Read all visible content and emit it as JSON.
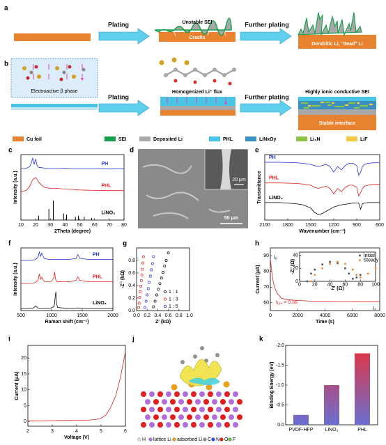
{
  "panels": {
    "a": {
      "label": "a",
      "step1": "Plating",
      "sei_text": "Unstable SEI",
      "cracks": "Cracks",
      "step2": "Further plating",
      "result": "Dendritic Li, \"dead\" Li"
    },
    "b": {
      "label": "b",
      "phase": "Electroactive β phase",
      "step1": "Plating",
      "flux": "Homogenized Li⁺ flux",
      "step2": "Further plating",
      "sei_text": "Highly ionic conductive SEI",
      "result": "Stable interface"
    },
    "legend": [
      {
        "name": "Cu foil",
        "color": "#e8822e"
      },
      {
        "name": "SEI",
        "color": "#1aa04a"
      },
      {
        "name": "Deposited Li",
        "color": "#a8a8a8"
      },
      {
        "name": "PHL",
        "color": "#49c6e5"
      },
      {
        "name": "LiNxOy",
        "color": "#3a8fc0"
      },
      {
        "name": "Li₃N",
        "color": "#8bc34a"
      },
      {
        "name": "LiF",
        "color": "#f5c842"
      }
    ],
    "d": {
      "label": "d",
      "scale_inset": "20 μm",
      "scale_main": "50 μm"
    },
    "j": {
      "label": "j",
      "legend": [
        "H",
        "lattice Li",
        "adsorbed Li",
        "C",
        "N",
        "O",
        "F"
      ]
    }
  },
  "chart_data": [
    {
      "type": "line",
      "panel": "c",
      "xlabel": "2Theta (degree)",
      "ylabel": "Intensity (a.u.)",
      "series_labels": "right",
      "xlim": [
        10,
        80
      ],
      "xticks": [
        10,
        20,
        30,
        40,
        50,
        60,
        70,
        80
      ],
      "ylim": [
        0,
        3
      ],
      "x": [
        10,
        12,
        14,
        16,
        17,
        18,
        19,
        20,
        21,
        22,
        24,
        26,
        30,
        35,
        40,
        45,
        50,
        60,
        70,
        80
      ],
      "series": [
        {
          "name": "PH",
          "color": "#1f2fd6",
          "values": [
            2.35,
            2.36,
            2.38,
            2.45,
            2.6,
            2.85,
            2.55,
            2.8,
            2.5,
            2.42,
            2.4,
            2.38,
            2.36,
            2.36,
            2.37,
            2.35,
            2.35,
            2.35,
            2.34,
            2.35
          ]
        },
        {
          "name": "PHL",
          "color": "#e02020",
          "values": [
            1.3,
            1.32,
            1.38,
            1.55,
            1.7,
            1.85,
            1.9,
            1.95,
            1.85,
            1.75,
            1.6,
            1.5,
            1.45,
            1.45,
            1.42,
            1.4,
            1.38,
            1.36,
            1.35,
            1.35
          ]
        },
        {
          "name": "LiNO₃",
          "color": "#000000",
          "style": "sticks",
          "x": [
            22,
            29,
            32,
            39,
            41,
            47,
            49,
            53,
            58
          ],
          "values": [
            0.2,
            0.5,
            0.9,
            0.3,
            0.25,
            0.15,
            0.2,
            0.15,
            0.1
          ]
        }
      ]
    },
    {
      "type": "line",
      "panel": "e",
      "xlabel": "Wavenumber (cm⁻¹)",
      "ylabel": "Transmittance",
      "series_labels": "left",
      "xlim": [
        2100,
        600
      ],
      "xticks": [
        2100,
        1800,
        1500,
        1200,
        900,
        600
      ],
      "ylim": [
        0,
        3
      ],
      "x": [
        2100,
        1900,
        1700,
        1600,
        1500,
        1450,
        1400,
        1350,
        1300,
        1250,
        1200,
        1150,
        1100,
        1050,
        1000,
        950,
        900,
        875,
        850,
        825,
        800,
        750,
        700,
        600
      ],
      "series": [
        {
          "name": "PH",
          "color": "#1f2fd6",
          "values": [
            2.65,
            2.65,
            2.63,
            2.6,
            2.55,
            2.5,
            2.45,
            2.5,
            2.55,
            2.45,
            2.2,
            2.45,
            2.3,
            2.5,
            2.6,
            2.6,
            2.5,
            2.05,
            2.2,
            2.45,
            2.55,
            2.6,
            2.62,
            2.63
          ]
        },
        {
          "name": "PHL",
          "color": "#e02020",
          "values": [
            1.7,
            1.7,
            1.68,
            1.65,
            1.6,
            1.5,
            1.45,
            1.5,
            1.55,
            1.45,
            1.2,
            1.45,
            1.3,
            1.5,
            1.6,
            1.6,
            1.5,
            1.1,
            1.25,
            1.45,
            1.55,
            1.6,
            1.62,
            1.65
          ]
        },
        {
          "name": "LiNO₃",
          "color": "#000000",
          "values": [
            0.8,
            0.8,
            0.75,
            0.7,
            0.55,
            0.35,
            0.25,
            0.3,
            0.4,
            0.5,
            0.6,
            0.65,
            0.7,
            0.72,
            0.75,
            0.78,
            0.78,
            0.78,
            0.5,
            0.75,
            0.78,
            0.8,
            0.8,
            0.8
          ]
        }
      ]
    },
    {
      "type": "line",
      "panel": "f",
      "xlabel": "Raman shift (cm⁻¹)",
      "ylabel": "Intensity (a.u.)",
      "series_labels": "right",
      "xlim": [
        500,
        2000
      ],
      "xticks": [
        500,
        1000,
        1500,
        2000
      ],
      "ylim": [
        0,
        3
      ],
      "x": [
        500,
        600,
        700,
        740,
        780,
        800,
        820,
        840,
        880,
        950,
        1000,
        1040,
        1050,
        1060,
        1070,
        1080,
        1100,
        1200,
        1300,
        1400,
        1430,
        1460,
        1600,
        1800,
        2000
      ],
      "series": [
        {
          "name": "PH",
          "color": "#1f2fd6",
          "values": [
            2.4,
            2.4,
            2.42,
            2.45,
            2.55,
            2.8,
            2.6,
            2.75,
            2.5,
            2.45,
            2.45,
            2.45,
            2.45,
            2.45,
            2.45,
            2.45,
            2.45,
            2.45,
            2.45,
            2.5,
            2.68,
            2.5,
            2.45,
            2.45,
            2.45
          ]
        },
        {
          "name": "PHL",
          "color": "#e02020",
          "values": [
            1.3,
            1.3,
            1.32,
            1.35,
            1.45,
            1.75,
            1.5,
            1.6,
            1.4,
            1.38,
            1.4,
            1.6,
            1.85,
            1.6,
            1.45,
            1.4,
            1.38,
            1.38,
            1.38,
            1.45,
            1.62,
            1.45,
            1.38,
            1.38,
            1.38
          ]
        },
        {
          "name": "LiNO₃",
          "color": "#000000",
          "values": [
            0.1,
            0.1,
            0.12,
            0.22,
            0.12,
            0.12,
            0.12,
            0.12,
            0.12,
            0.12,
            0.13,
            0.2,
            0.35,
            0.7,
            0.9,
            0.35,
            0.15,
            0.12,
            0.12,
            0.12,
            0.13,
            0.12,
            0.12,
            0.12,
            0.12
          ]
        }
      ]
    },
    {
      "type": "scatter",
      "panel": "g",
      "xlabel": "Z' (kΩ)",
      "ylabel": "-Z'' (kΩ)",
      "legend": "lower right",
      "xlim": [
        0,
        1.0
      ],
      "xticks": [
        {
          "value": 0,
          "label": "0.0"
        },
        0.2,
        0.4,
        0.6,
        0.8,
        {
          "value": 1,
          "label": "1.0"
        }
      ],
      "ylim": [
        0,
        1.0
      ],
      "yticks": [
        {
          "value": 0,
          "label": "0.0"
        },
        0.2,
        0.4,
        0.6,
        0.8
      ],
      "series": [
        {
          "name": "1 : 1",
          "color": "#000000",
          "x": [
            0.32,
            0.35,
            0.38,
            0.41,
            0.44,
            0.47,
            0.5,
            0.53,
            0.56,
            0.6
          ],
          "values": [
            0.06,
            0.15,
            0.25,
            0.34,
            0.43,
            0.52,
            0.61,
            0.71,
            0.8,
            0.92
          ]
        },
        {
          "name": "1 : 3",
          "color": "#e02020",
          "x": [
            0.04,
            0.05,
            0.06,
            0.07,
            0.08,
            0.09,
            0.1,
            0.11,
            0.12,
            0.13
          ],
          "values": [
            0.05,
            0.12,
            0.21,
            0.3,
            0.39,
            0.48,
            0.57,
            0.66,
            0.76,
            0.86
          ]
        },
        {
          "name": "1 : 5",
          "color": "#1f2fd6",
          "x": [
            0.16,
            0.18,
            0.2,
            0.22,
            0.24,
            0.26,
            0.28,
            0.3,
            0.32
          ],
          "values": [
            0.05,
            0.15,
            0.25,
            0.35,
            0.45,
            0.55,
            0.65,
            0.75,
            0.86
          ]
        }
      ]
    },
    {
      "type": "line",
      "panel": "h",
      "xlabel": "Time (s)",
      "ylabel": "Current (μA)",
      "xlim": [
        0,
        8000
      ],
      "xticks": [
        0,
        2000,
        4000,
        6000,
        8000
      ],
      "ylim": [
        55,
        95
      ],
      "yticks": [
        60,
        70,
        80,
        90
      ],
      "annotations": {
        "i0": "I₀",
        "is": "Iₛ",
        "t": "t",
        "t_sub": "Li+",
        "t_text": " = 0.56"
      },
      "x": [
        0,
        50,
        100,
        200,
        300,
        500,
        800,
        1200,
        2000,
        3000,
        4000,
        5000,
        6000,
        7000,
        8000
      ],
      "series": [
        {
          "name": "Current",
          "color": "#e02020",
          "values": [
            88,
            84,
            80,
            74,
            70,
            66,
            63,
            62,
            61.5,
            61,
            61,
            60.8,
            60.8,
            60.7,
            60.7
          ]
        }
      ],
      "inset": {
        "type": "scatter",
        "xlabel": "Z' (Ω)",
        "ylabel": "-Z'' (Ω)",
        "legend": "upper right",
        "xlim": [
          0,
          100
        ],
        "xticks": [
          0,
          20,
          40,
          60,
          80,
          100
        ],
        "ylim": [
          0,
          45
        ],
        "yticks": [
          0,
          20,
          40
        ],
        "series": [
          {
            "name": "Initial",
            "color": "#555555",
            "x": [
              10,
              15,
              20,
              30,
              40,
              50,
              60,
              65,
              70,
              75,
              80
            ],
            "values": [
              0,
              12,
              18,
              26,
              30,
              28,
              20,
              12,
              4,
              6,
              10
            ]
          },
          {
            "name": "Steady",
            "color": "#f08a3c",
            "x": [
              15,
              20,
              30,
              40,
              50,
              60,
              70,
              75,
              80,
              90,
              100
            ],
            "values": [
              0,
              10,
              20,
              27,
              30,
              27,
              18,
              10,
              6,
              12,
              20
            ]
          }
        ]
      }
    },
    {
      "type": "line",
      "panel": "i",
      "xlabel": "Voltage (V)",
      "ylabel": "Current (μA)",
      "xlim": [
        2,
        6
      ],
      "xticks": [
        2,
        3,
        4,
        5,
        6
      ],
      "ylim": [
        -1.5,
        24
      ],
      "yticks": [
        0,
        5,
        10,
        15,
        20
      ],
      "x": [
        2,
        2.5,
        3,
        3.5,
        4,
        4.5,
        4.8,
        5,
        5.2,
        5.4,
        5.6,
        5.8,
        6
      ],
      "series": [
        {
          "name": "Current",
          "color": "#e02020",
          "values": [
            0.2,
            0.2,
            0.25,
            0.3,
            0.35,
            0.45,
            0.6,
            1,
            2,
            4.5,
            8,
            14,
            22
          ]
        }
      ]
    },
    {
      "type": "bar",
      "panel": "k",
      "ylabel": "Binding Energy (eV)",
      "gradient": [
        "#e8323c",
        "#6a6fd2"
      ],
      "categories": [
        "PVDF-HFP",
        "LiNO₃",
        "PHL"
      ],
      "values": [
        -0.25,
        -1.0,
        -1.8
      ],
      "ylim": [
        0,
        -2.0
      ],
      "yticks": [
        {
          "value": 0,
          "label": "0.0"
        },
        -0.5,
        {
          "value": -1,
          "label": "-1.0"
        },
        -1.5,
        {
          "value": -2,
          "label": "-2.0"
        }
      ]
    }
  ]
}
